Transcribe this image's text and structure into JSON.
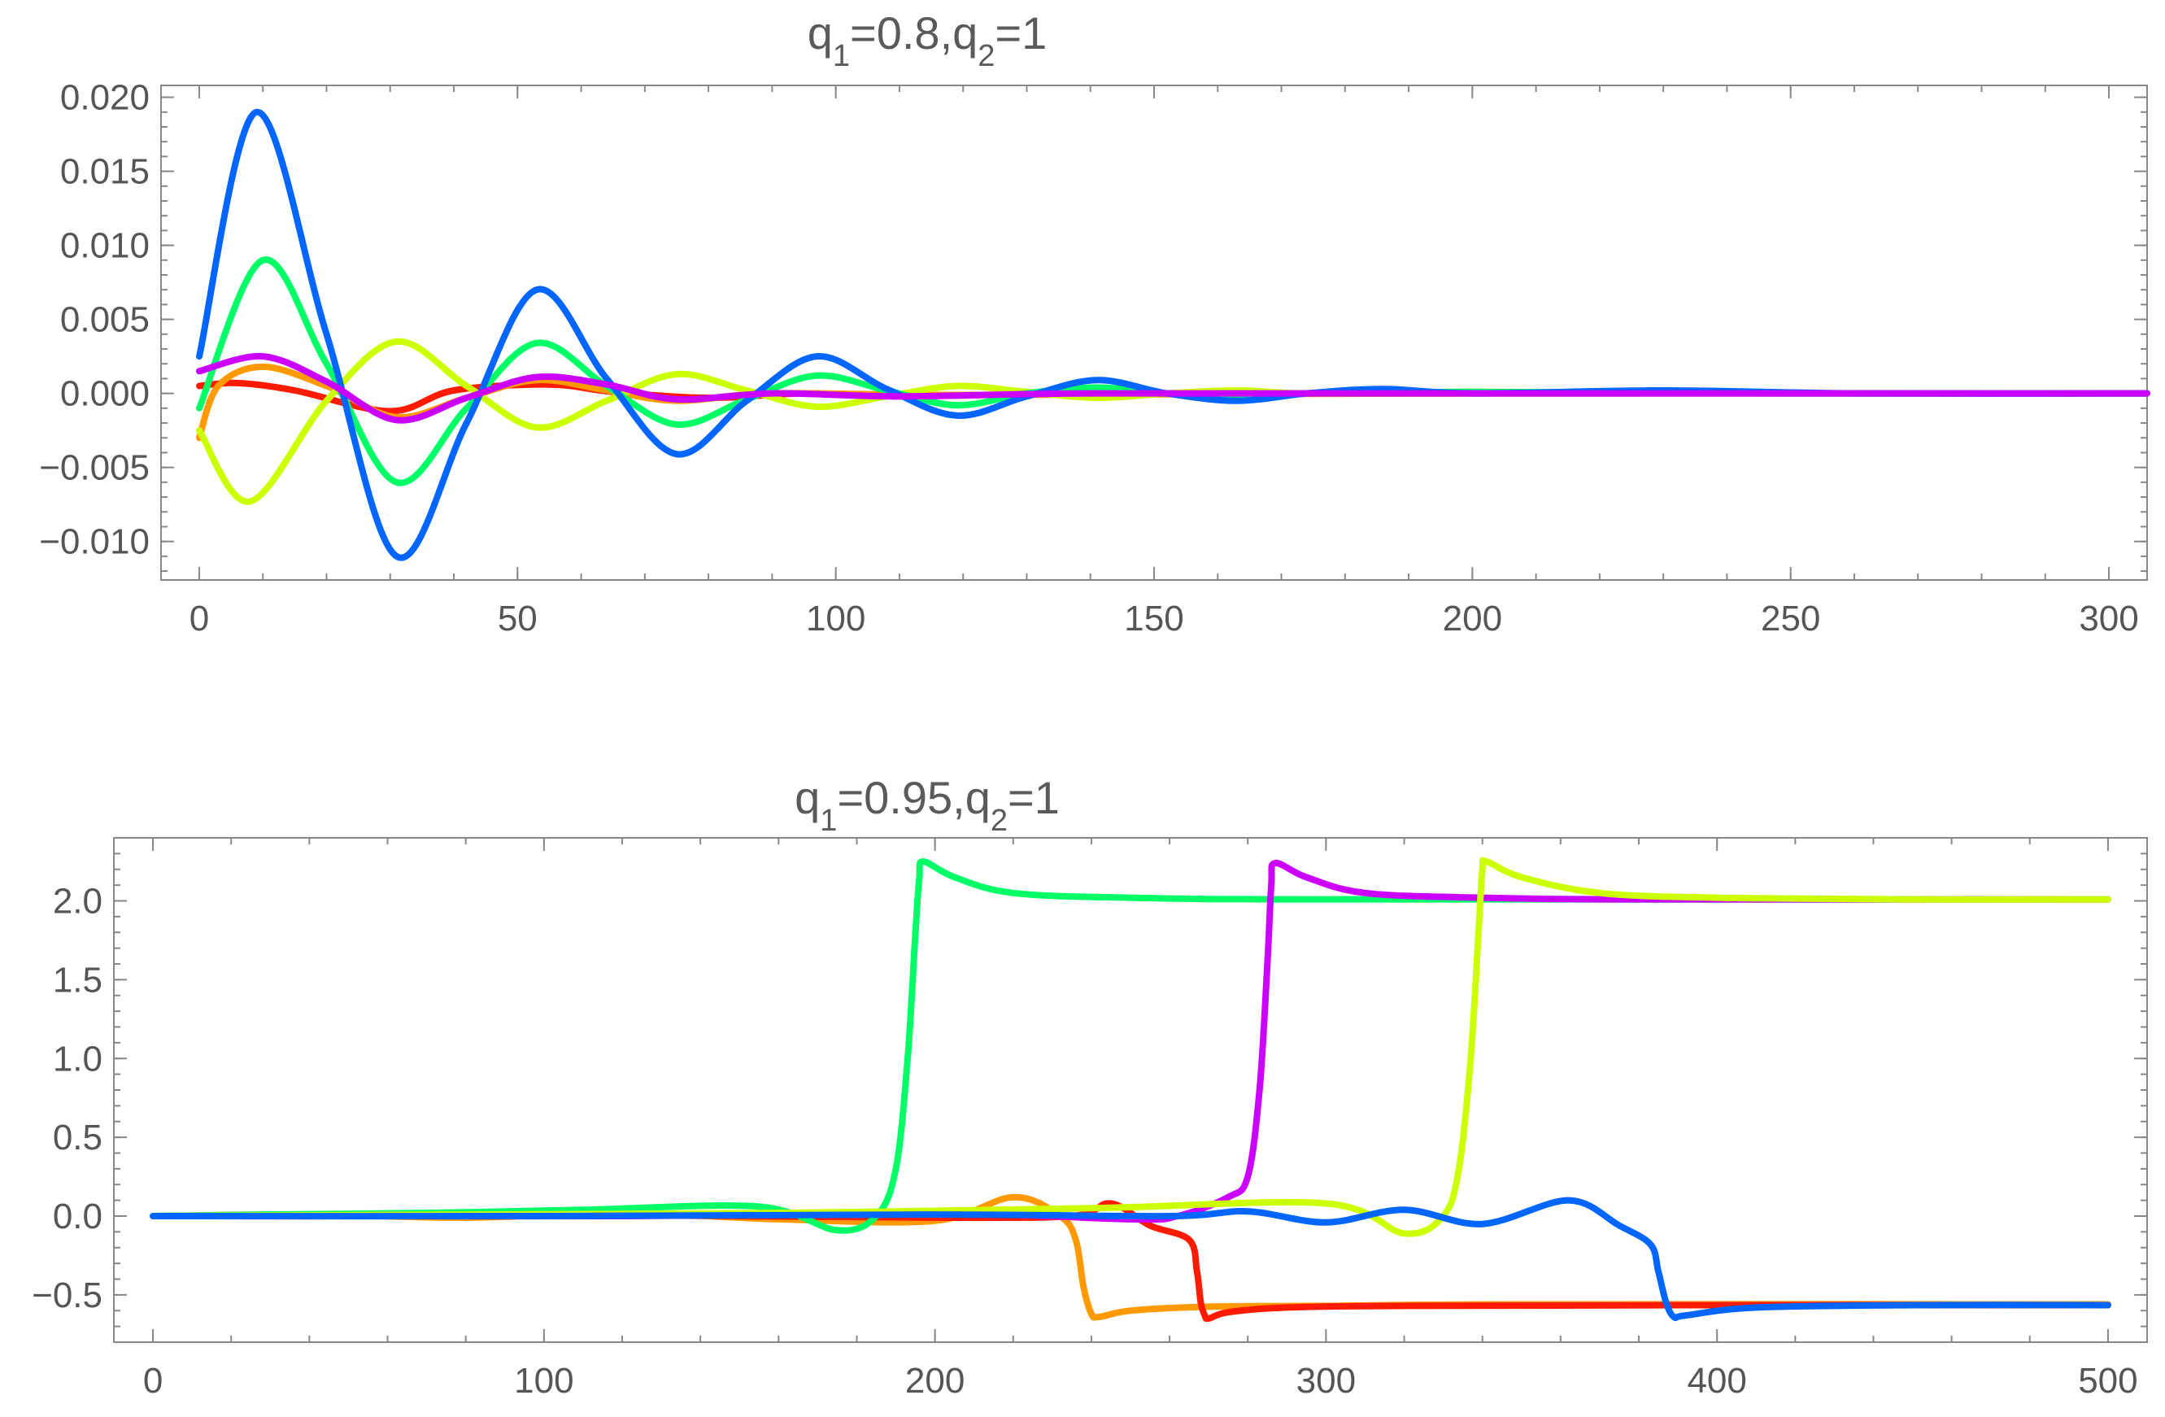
{
  "chart_data": [
    {
      "type": "line",
      "title": "q1=0.8,q2=1",
      "title_parts": {
        "q1_label": "q",
        "q1_sub": "1",
        "q1_val": "=0.8,",
        "q2_label": "q",
        "q2_sub": "2",
        "q2_val": "=1"
      },
      "xlim": [
        -6,
        306
      ],
      "ylim": [
        -0.0126,
        0.0208
      ],
      "x_ticks": [
        0,
        50,
        100,
        150,
        200,
        250,
        300
      ],
      "x_tick_labels": [
        "0",
        "50",
        "100",
        "150",
        "200",
        "250",
        "300"
      ],
      "y_ticks": [
        -0.01,
        -0.005,
        0.0,
        0.005,
        0.01,
        0.015,
        0.02
      ],
      "y_tick_labels": [
        "−0.010",
        "−0.005",
        "0.000",
        "0.005",
        "0.010",
        "0.015",
        "0.020"
      ],
      "series": [
        {
          "name": "red",
          "color": "#ff1a00",
          "x": [
            0,
            6,
            15,
            30,
            40,
            55,
            65,
            80,
            95,
            110,
            140,
            200,
            306
          ],
          "y": [
            0.0005,
            0.0007,
            0.0002,
            -0.0012,
            0.0002,
            0.0006,
            0.0001,
            -0.0003,
            0.0,
            -0.0002,
            0.0,
            0.0,
            0.0
          ]
        },
        {
          "name": "orange",
          "color": "#ff9900",
          "x": [
            0,
            3,
            10,
            20,
            31,
            42,
            53,
            64,
            75,
            90,
            120,
            200,
            306
          ],
          "y": [
            -0.003,
            0.0005,
            0.0018,
            0.0005,
            -0.0016,
            -0.0003,
            0.0009,
            0.0002,
            -0.0005,
            0.0,
            -0.0001,
            0.0,
            0.0
          ]
        },
        {
          "name": "yellow-green",
          "color": "#ccff00",
          "x": [
            0,
            8,
            20,
            31,
            42,
            53,
            64,
            75,
            86,
            97,
            108,
            119,
            130,
            141,
            152,
            163,
            174,
            200,
            250,
            306
          ],
          "y": [
            -0.0025,
            -0.0073,
            -0.0005,
            0.0035,
            0.0005,
            -0.0023,
            -0.0005,
            0.0013,
            0.0002,
            -0.0009,
            -0.0002,
            0.0005,
            0.0001,
            -0.0003,
            0.0,
            0.0002,
            0.0,
            0.0,
            0.0,
            0.0
          ]
        },
        {
          "name": "green",
          "color": "#00ff66",
          "x": [
            0,
            10,
            20,
            31,
            42,
            53,
            64,
            75,
            86,
            97,
            108,
            119,
            130,
            141,
            152,
            163,
            174,
            200,
            250,
            306
          ],
          "y": [
            -0.001,
            0.009,
            0.002,
            -0.006,
            -0.001,
            0.0034,
            0.0005,
            -0.0021,
            -0.0004,
            0.0012,
            0.0002,
            -0.0008,
            0.0,
            0.0004,
            0.0,
            -0.0002,
            0.0,
            0.0001,
            0.0,
            0.0
          ]
        },
        {
          "name": "blue",
          "color": "#0066ff",
          "x": [
            0,
            9,
            20,
            31,
            42,
            53,
            64,
            75,
            86,
            97,
            108,
            119,
            130,
            141,
            152,
            163,
            174,
            186,
            200,
            230,
            260,
            306
          ],
          "y": [
            0.0025,
            0.019,
            0.004,
            -0.011,
            -0.002,
            0.007,
            0.001,
            -0.0041,
            -0.0005,
            0.0025,
            0.0003,
            -0.0015,
            -0.0002,
            0.0009,
            0.0,
            -0.0005,
            0.0,
            0.0003,
            0.0,
            0.0002,
            0.0,
            0.0
          ]
        },
        {
          "name": "purple",
          "color": "#cc00ff",
          "x": [
            0,
            10,
            20,
            31,
            42,
            53,
            64,
            75,
            90,
            110,
            140,
            200,
            306
          ],
          "y": [
            0.0015,
            0.0025,
            0.0008,
            -0.0018,
            -0.0003,
            0.0011,
            0.0006,
            -0.0004,
            0.0,
            -0.0002,
            0.0,
            0.0,
            0.0
          ]
        }
      ]
    },
    {
      "type": "line",
      "title": "q1=0.95,q2=1",
      "title_parts": {
        "q1_label": "q",
        "q1_sub": "1",
        "q1_val": "=0.95,",
        "q2_label": "q",
        "q2_sub": "2",
        "q2_val": "=1"
      },
      "xlim": [
        -10,
        510
      ],
      "ylim": [
        -0.8,
        2.4
      ],
      "x_ticks": [
        0,
        100,
        200,
        300,
        400,
        500
      ],
      "x_tick_labels": [
        "0",
        "100",
        "200",
        "300",
        "400",
        "500"
      ],
      "y_ticks": [
        -0.5,
        0.0,
        0.5,
        1.0,
        1.5,
        2.0
      ],
      "y_tick_labels": [
        "−0.5",
        "0.0",
        "0.5",
        "1.0",
        "1.5",
        "2.0"
      ],
      "series": [
        {
          "name": "orange",
          "color": "#ff9900",
          "x": [
            0,
            40,
            80,
            120,
            160,
            200,
            220,
            232,
            236,
            238,
            240,
            242,
            250,
            270,
            300,
            350,
            500
          ],
          "y": [
            0.0,
            0.01,
            -0.01,
            0.02,
            -0.02,
            -0.03,
            0.12,
            0.0,
            -0.15,
            -0.45,
            -0.62,
            -0.64,
            -0.6,
            -0.575,
            -0.57,
            -0.56,
            -0.56
          ]
        },
        {
          "name": "red",
          "color": "#ff1a00",
          "x": [
            0,
            50,
            100,
            150,
            200,
            235,
            245,
            255,
            265,
            267,
            268,
            269,
            270,
            275,
            290,
            320,
            400,
            500
          ],
          "y": [
            0.0,
            0.0,
            0.01,
            0.0,
            -0.01,
            0.0,
            0.08,
            -0.06,
            -0.15,
            -0.35,
            -0.55,
            -0.63,
            -0.65,
            -0.61,
            -0.58,
            -0.57,
            -0.565,
            -0.565
          ]
        },
        {
          "name": "green",
          "color": "#00ff66",
          "x": [
            0,
            30,
            70,
            110,
            155,
            175,
            185,
            190,
            193,
            195,
            196,
            197,
            205,
            220,
            250,
            300,
            500
          ],
          "y": [
            0.0,
            0.01,
            0.02,
            0.04,
            0.06,
            -0.09,
            0.0,
            0.3,
            1.0,
            1.8,
            2.15,
            2.25,
            2.15,
            2.05,
            2.02,
            2.01,
            2.01
          ]
        },
        {
          "name": "purple",
          "color": "#cc00ff",
          "x": [
            0,
            60,
            120,
            200,
            250,
            262,
            275,
            280,
            283,
            285,
            286,
            287,
            295,
            310,
            340,
            380,
            500
          ],
          "y": [
            0.0,
            0.0,
            0.0,
            0.02,
            -0.02,
            0.0,
            0.12,
            0.25,
            0.8,
            1.6,
            2.1,
            2.24,
            2.15,
            2.05,
            2.02,
            2.01,
            2.01
          ]
        },
        {
          "name": "yellow-green",
          "color": "#ccff00",
          "x": [
            0,
            80,
            160,
            240,
            300,
            320,
            330,
            334,
            337,
            339,
            340,
            341,
            350,
            370,
            400,
            450,
            500
          ],
          "y": [
            0.0,
            0.01,
            0.02,
            0.05,
            0.08,
            -0.11,
            0.0,
            0.3,
            1.0,
            1.8,
            2.2,
            2.25,
            2.15,
            2.05,
            2.02,
            2.01,
            2.01
          ]
        },
        {
          "name": "blue",
          "color": "#0066ff",
          "x": [
            0,
            100,
            200,
            260,
            280,
            300,
            320,
            340,
            362,
            375,
            383,
            385,
            387,
            389,
            392,
            410,
            450,
            500
          ],
          "y": [
            0.0,
            0.0,
            0.01,
            0.0,
            0.03,
            -0.04,
            0.04,
            -0.05,
            0.1,
            -0.06,
            -0.18,
            -0.35,
            -0.55,
            -0.64,
            -0.63,
            -0.58,
            -0.565,
            -0.565
          ]
        }
      ]
    }
  ]
}
